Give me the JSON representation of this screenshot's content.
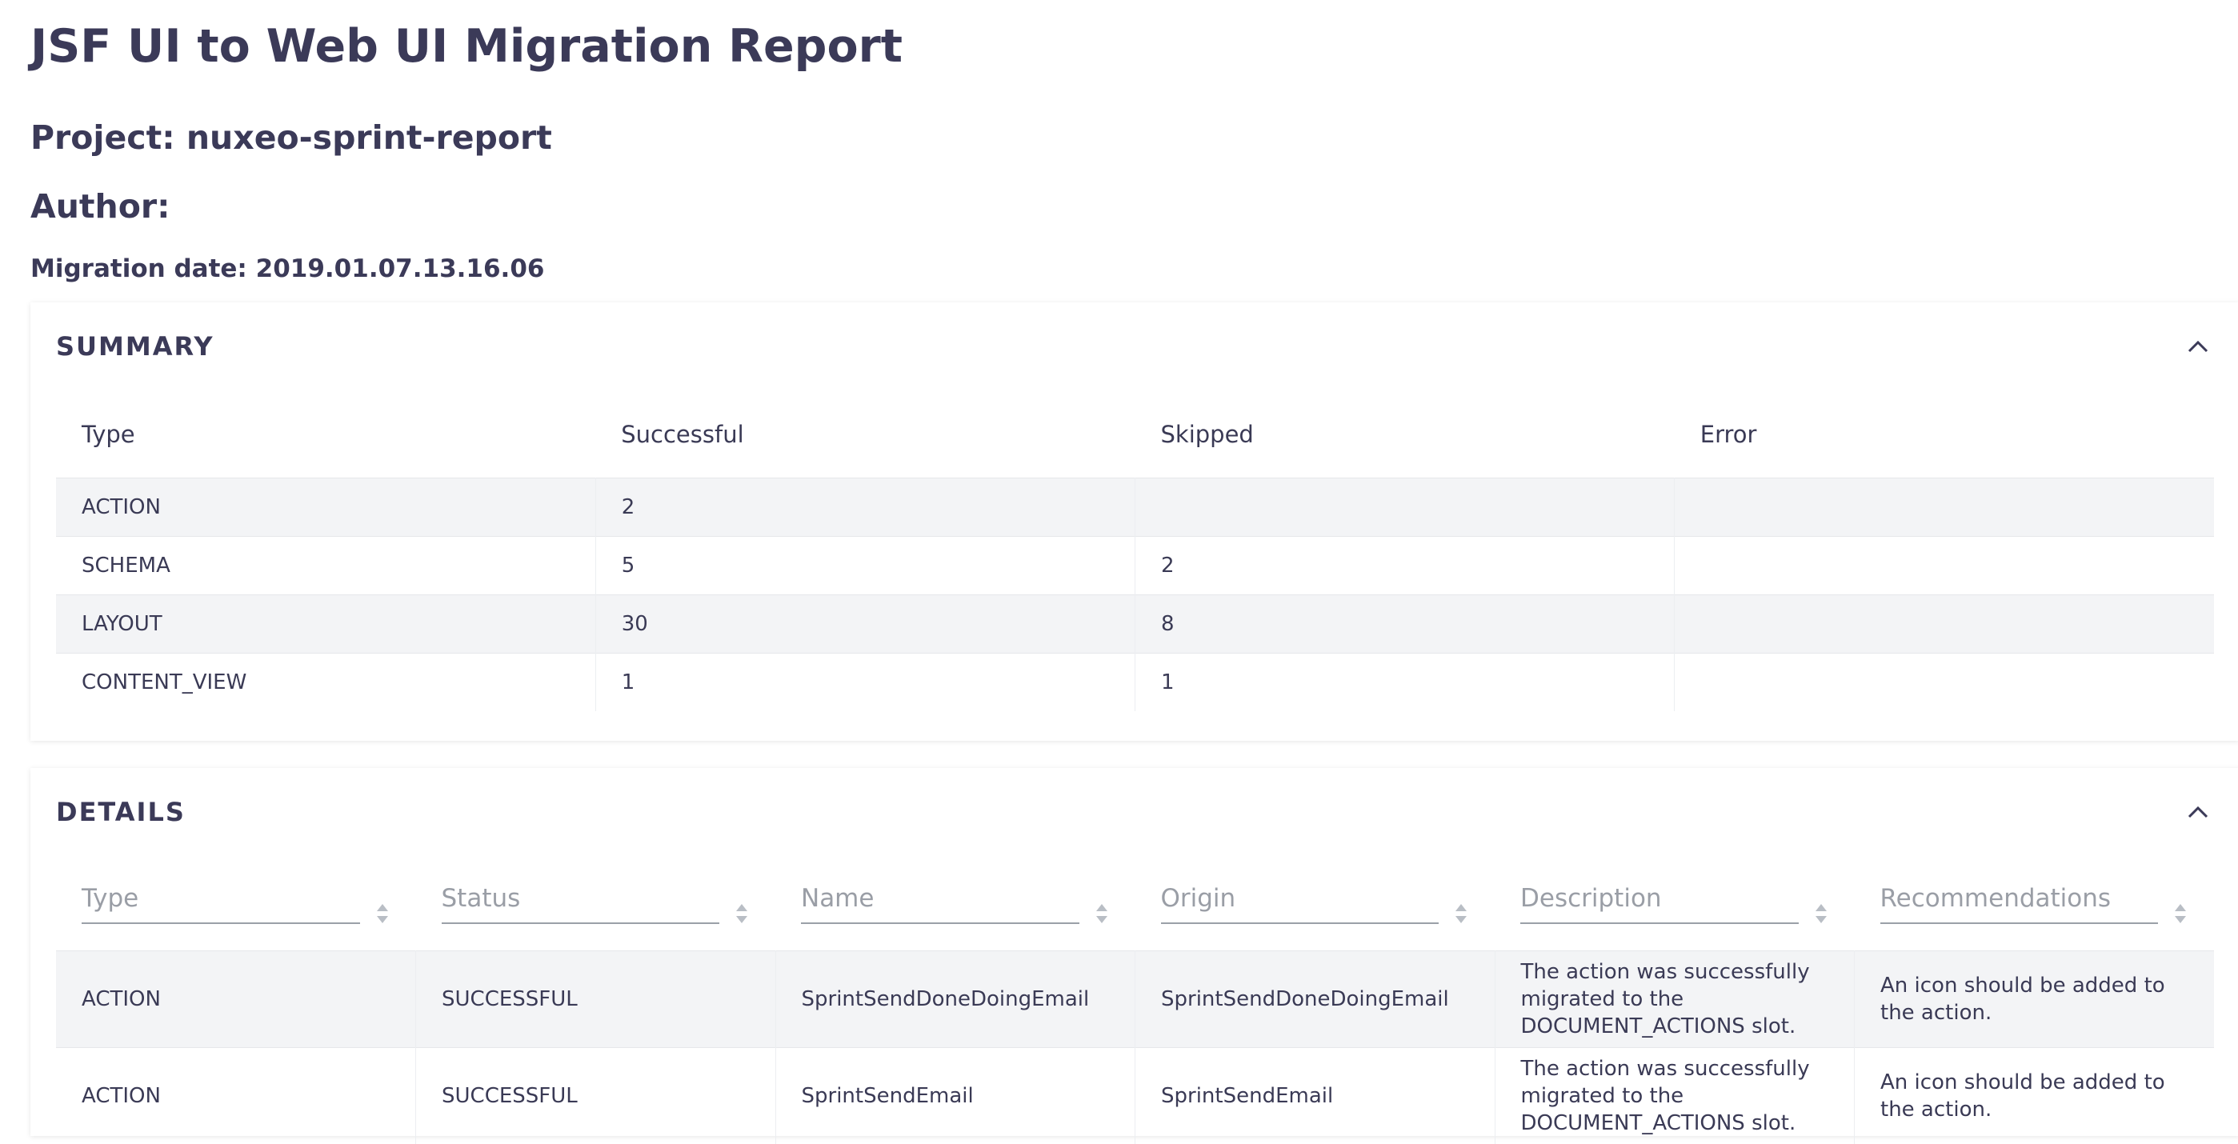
{
  "header": {
    "title": "JSF UI to Web UI Migration Report",
    "project": "Project: nuxeo-sprint-report",
    "author": "Author:",
    "migration_date": "Migration date: 2019.01.07.13.16.06"
  },
  "summary": {
    "title": "SUMMARY",
    "columns": [
      "Type",
      "Successful",
      "Skipped",
      "Error"
    ],
    "rows": [
      [
        "ACTION",
        "2",
        "",
        ""
      ],
      [
        "SCHEMA",
        "5",
        "2",
        ""
      ],
      [
        "LAYOUT",
        "30",
        "8",
        ""
      ],
      [
        "CONTENT_VIEW",
        "1",
        "1",
        ""
      ]
    ]
  },
  "details": {
    "title": "DETAILS",
    "filters": [
      "Type",
      "Status",
      "Name",
      "Origin",
      "Description",
      "Recommendations"
    ],
    "rows": [
      [
        "ACTION",
        "SUCCESSFUL",
        "SprintSendDoneDoingEmail",
        "SprintSendDoneDoingEmail",
        "The action was successfully migrated to the DOCUMENT_ACTIONS slot.",
        "An icon should be added to the action."
      ],
      [
        "ACTION",
        "SUCCESSFUL",
        "SprintSendEmail",
        "SprintSendEmail",
        "The action was successfully migrated to the DOCUMENT_ACTIONS slot.",
        "An icon should be added to the action."
      ]
    ]
  },
  "icons": {
    "collapse": "chevron-up-icon",
    "sort": "sort-icon"
  },
  "colors": {
    "text": "#3b3a58",
    "row_stripe": "#f3f4f6",
    "placeholder": "#9a9ea6"
  }
}
